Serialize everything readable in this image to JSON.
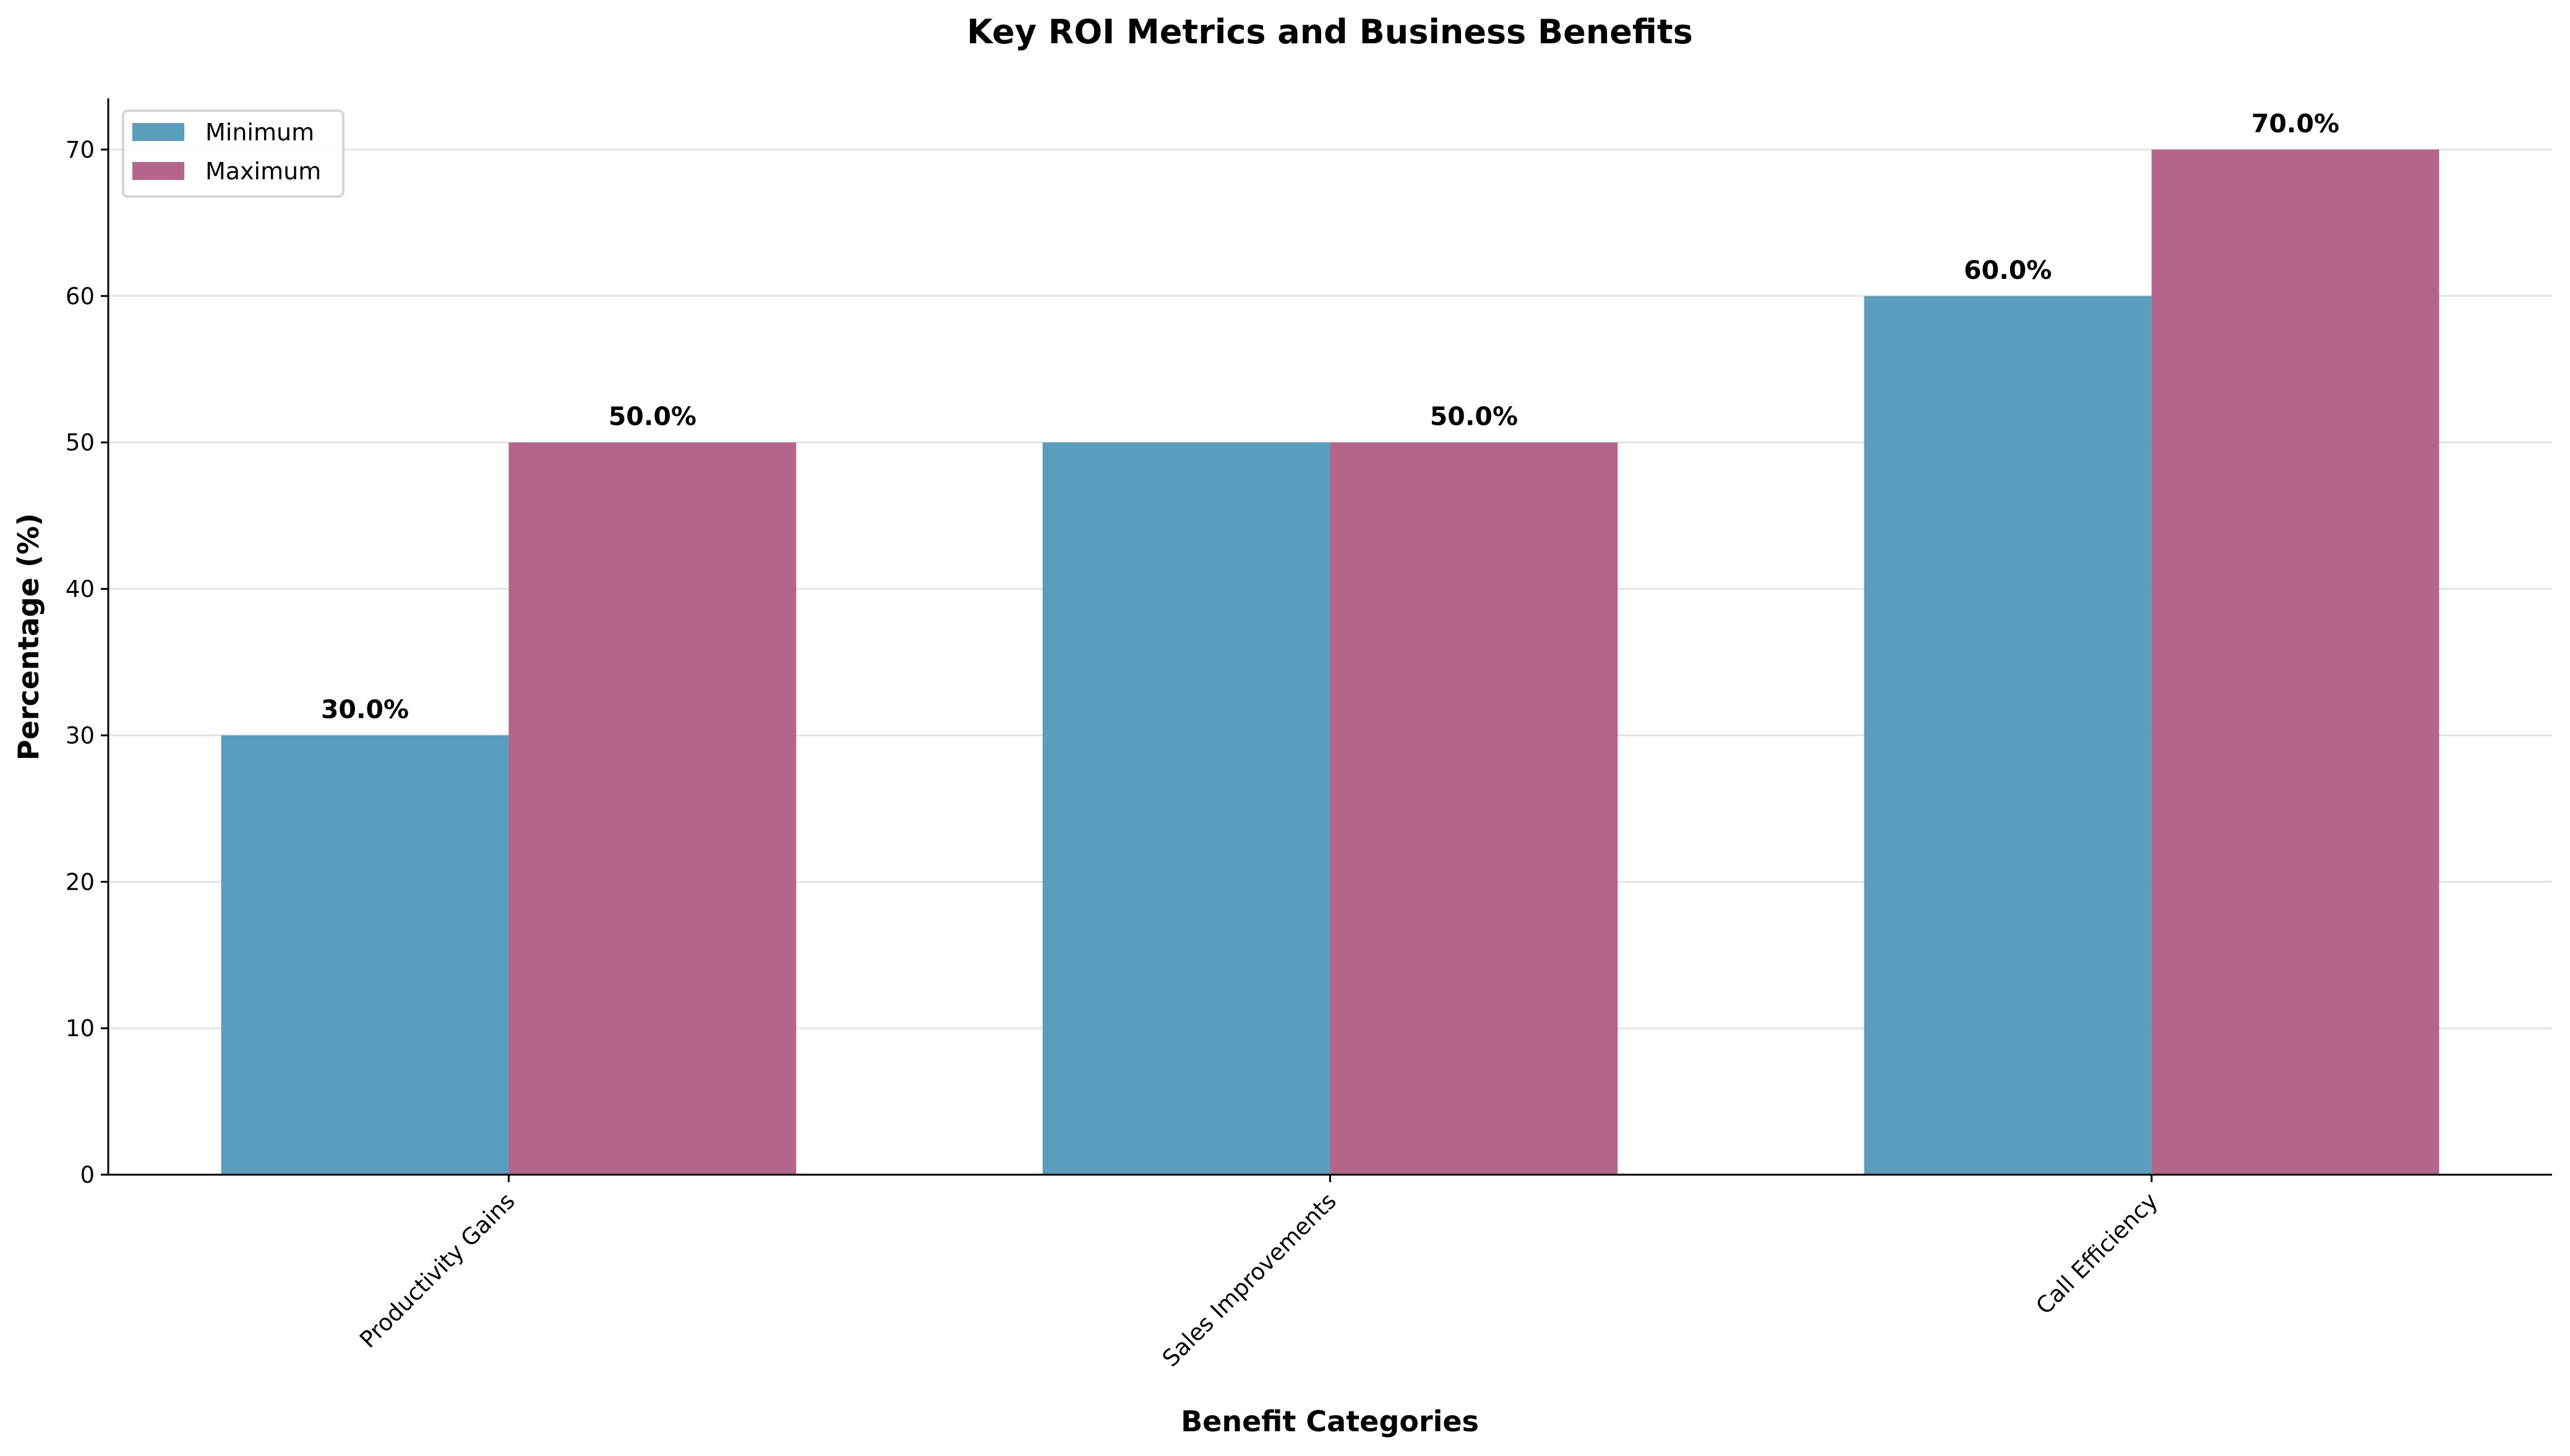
{
  "chart_data": {
    "type": "bar",
    "title": "Key ROI Metrics and Business Benefits",
    "xlabel": "Benefit Categories",
    "ylabel": "Percentage (%)",
    "categories": [
      "Productivity Gains",
      "Sales Improvements",
      "Call Efficiency"
    ],
    "series": [
      {
        "name": "Minimum",
        "values": [
          30,
          50,
          60
        ],
        "color": "#5a9dbc",
        "data_labels": [
          "30.0%",
          null,
          "60.0%"
        ]
      },
      {
        "name": "Maximum",
        "values": [
          50,
          50,
          70
        ],
        "color": "#b5648a",
        "data_labels": [
          "50.0%",
          "50.0%",
          "70.0%"
        ]
      }
    ],
    "ylim": [
      0,
      73.5
    ],
    "yticks": [
      0,
      10,
      20,
      30,
      40,
      50,
      60,
      70
    ],
    "grid": "horizontal",
    "legend": "top-left"
  }
}
